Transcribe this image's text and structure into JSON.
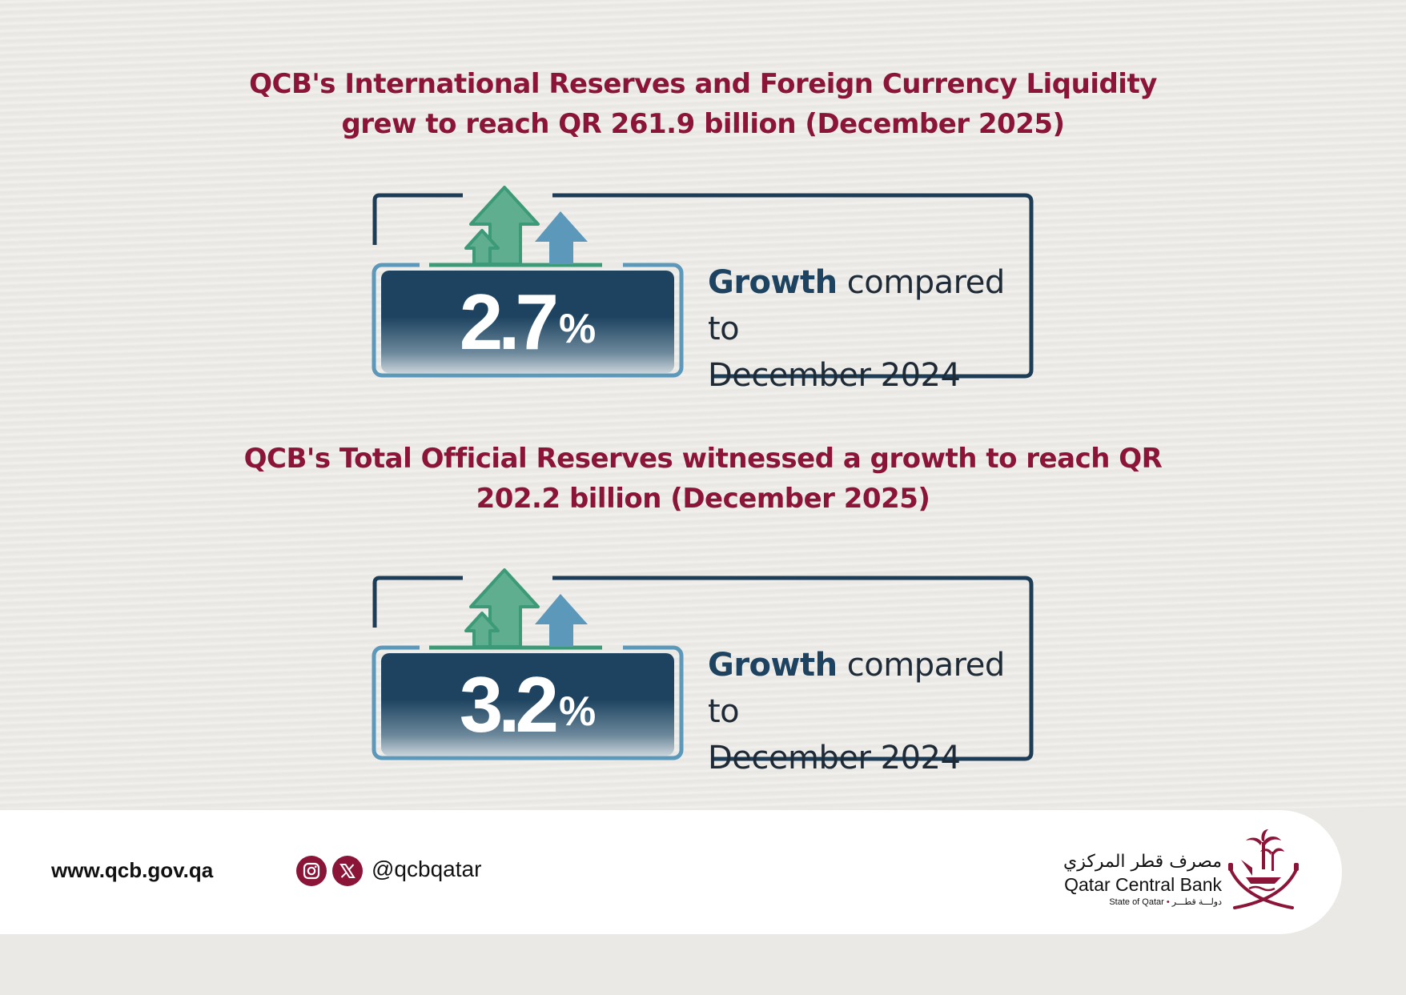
{
  "headline1": {
    "line1": "QCB's International Reserves and Foreign Currency Liquidity",
    "line2": "grew to reach QR 261.9 billion (December 2025)"
  },
  "stat1": {
    "value": "2.7",
    "unit": "%",
    "label_strong": "Growth",
    "label_rest": " compared to",
    "label_line2": "December 2024"
  },
  "headline2": {
    "line1": "QCB's Total Official Reserves witnessed a growth to reach QR",
    "line2": "202.2 billion (December 2025)"
  },
  "stat2": {
    "value": "3.2",
    "unit": "%",
    "label_strong": "Growth",
    "label_rest": " compared to",
    "label_line2": "December 2024"
  },
  "footer": {
    "website": "www.qcb.gov.qa",
    "social_icons": [
      "instagram-icon",
      "x-icon"
    ],
    "handle": "@qcbqatar",
    "logo_arabic": "مصرف قطر المركزي",
    "logo_english": "Qatar Central Bank",
    "logo_sub_en": "State of Qatar",
    "logo_sub_ar": "دولـــة قطـــر"
  },
  "colors": {
    "maroon": "#8a1538",
    "navy": "#1d4360",
    "green_arrow": "#3c9a78",
    "blue_arrow": "#5b98ba",
    "background": "#ebe9e5"
  }
}
